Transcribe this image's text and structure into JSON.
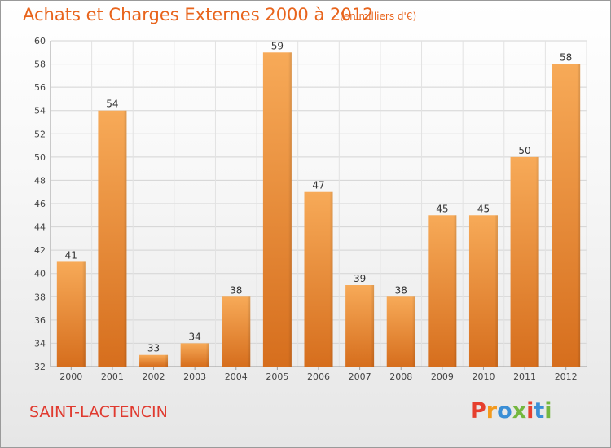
{
  "header": {
    "title": "Achats et Charges Externes 2000 à 2012",
    "subtitle": "(en milliers d'€)"
  },
  "footer": {
    "commune": "SAINT-LACTENCIN",
    "logo": "Proxiti"
  },
  "colors": {
    "title": "#e8641c",
    "commune": "#e03a2f",
    "bar_light": "#f6a653",
    "bar_dark": "#d8701f"
  },
  "chart_data": {
    "type": "bar",
    "categories": [
      "2000",
      "2001",
      "2002",
      "2003",
      "2004",
      "2005",
      "2006",
      "2007",
      "2008",
      "2009",
      "2010",
      "2011",
      "2012"
    ],
    "values": [
      41,
      54,
      33,
      34,
      38,
      59,
      47,
      39,
      38,
      45,
      45,
      50,
      58
    ],
    "title": "Achats et Charges Externes 2000 à 2012",
    "subtitle": "(en milliers d'€)",
    "ylim": [
      32,
      60
    ],
    "yticks": [
      32,
      34,
      36,
      38,
      40,
      42,
      44,
      46,
      48,
      50,
      52,
      54,
      56,
      58,
      60
    ],
    "grid": true,
    "data_labels": true
  }
}
